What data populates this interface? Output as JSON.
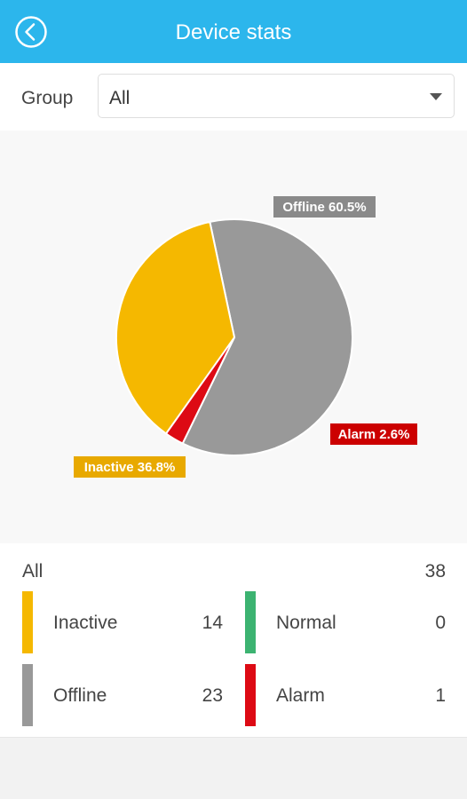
{
  "header": {
    "title": "Device stats",
    "back_icon": "back-circle-icon"
  },
  "filter": {
    "label": "Group",
    "selected": "All",
    "caret_icon": "caret-down-icon"
  },
  "colors": {
    "header_bg": "#2cb6ec",
    "inactive": "#f5b800",
    "offline": "#999999",
    "alarm": "#dd0a14",
    "normal": "#3cb371",
    "offline_label_bg": "#8a8a8a",
    "alarm_label_bg": "#cc0000",
    "inactive_label_bg": "#e8a900"
  },
  "chart_data": {
    "type": "pie",
    "slices": [
      {
        "name": "Offline",
        "value": 60.5,
        "label": "Offline 60.5%",
        "color": "#999999"
      },
      {
        "name": "Alarm",
        "value": 2.6,
        "label": "Alarm 2.6%",
        "color": "#dd0a14"
      },
      {
        "name": "Inactive",
        "value": 36.8,
        "label": "Inactive 36.8%",
        "color": "#f5b800"
      }
    ]
  },
  "stats": {
    "total_label": "All",
    "total_value": "38",
    "items": [
      {
        "label": "Inactive",
        "value": "14",
        "color": "#f5b800"
      },
      {
        "label": "Normal",
        "value": "0",
        "color": "#3cb371"
      },
      {
        "label": "Offline",
        "value": "23",
        "color": "#999999"
      },
      {
        "label": "Alarm",
        "value": "1",
        "color": "#dd0a14"
      }
    ]
  }
}
